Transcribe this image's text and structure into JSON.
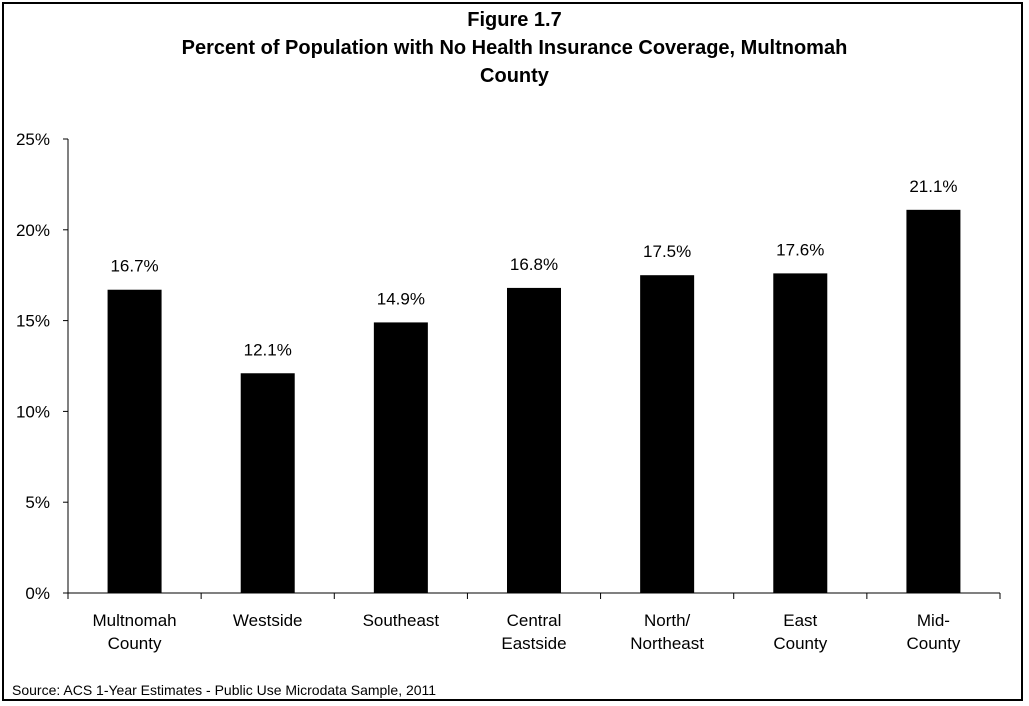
{
  "chart_data": {
    "type": "bar",
    "title_lines": [
      "Figure 1.7",
      "Percent of Population with No Health Insurance Coverage, Multnomah",
      "County"
    ],
    "categories": [
      [
        "Multnomah",
        "County"
      ],
      [
        "Westside"
      ],
      [
        "Southeast"
      ],
      [
        "Central",
        "Eastside"
      ],
      [
        "North/",
        "Northeast"
      ],
      [
        "East",
        "County"
      ],
      [
        "Mid-",
        "County"
      ]
    ],
    "values": [
      16.7,
      12.1,
      14.9,
      16.8,
      17.5,
      17.6,
      21.1
    ],
    "data_labels": [
      "16.7%",
      "12.1%",
      "14.9%",
      "16.8%",
      "17.5%",
      "17.6%",
      "21.1%"
    ],
    "y_ticks": [
      0,
      5,
      10,
      15,
      20,
      25
    ],
    "y_tick_labels": [
      "0%",
      "5%",
      "10%",
      "15%",
      "20%",
      "25%"
    ],
    "ylim": [
      0,
      25
    ],
    "xlabel": "",
    "ylabel": "",
    "grid": false,
    "bar_color": "#000000",
    "source": "Source: ACS 1-Year Estimates - Public Use Microdata Sample, 2011"
  }
}
